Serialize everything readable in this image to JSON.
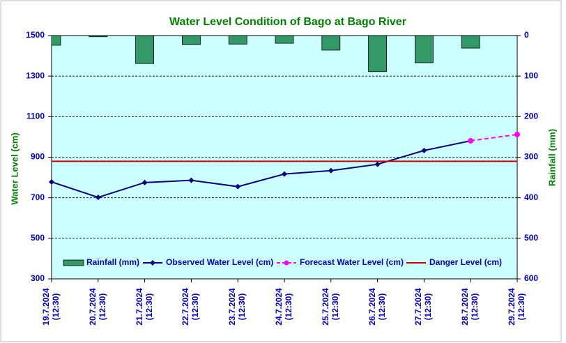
{
  "chart_data": {
    "type": "line",
    "title": "Water Level Condition of Bago at Bago River",
    "ylabel": "Water Level (cm)",
    "y2label": "Rainfall (mm)",
    "categories": [
      "19.7.2024\n(12:30)",
      "20.7.2024\n(12:30)",
      "21.7.2024\n(12:30)",
      "22.7.2024\n(12:30)",
      "23.7.2024\n(12:30)",
      "24.7.2024\n(12:30)",
      "25.7.2024\n(12:30)",
      "26.7.2024\n(12:30)",
      "27.7.2024\n(12:30)",
      "28.7.2024\n(12:30)",
      "29.7.2024\n(12:30)"
    ],
    "series": [
      {
        "name": "Rainfall (mm)",
        "type": "bar",
        "axis": "y2",
        "color": "#339966",
        "values": [
          24,
          3,
          69,
          22,
          21,
          19,
          36,
          89,
          67,
          31,
          null
        ]
      },
      {
        "name": "Observed Water Level (cm)",
        "type": "line",
        "marker": "diamond",
        "color": "#000080",
        "values": [
          778,
          702,
          775,
          786,
          755,
          817,
          834,
          865,
          933,
          981,
          null
        ]
      },
      {
        "name": "Forecast Water Level (cm)",
        "type": "line",
        "marker": "circle",
        "dashed": true,
        "color": "#ff00ff",
        "values": [
          null,
          null,
          null,
          null,
          null,
          null,
          null,
          null,
          null,
          981,
          1012
        ]
      },
      {
        "name": "Danger Level (cm)",
        "type": "line",
        "color": "#cc0000",
        "values": [
          880,
          880,
          880,
          880,
          880,
          880,
          880,
          880,
          880,
          880,
          880
        ]
      }
    ],
    "ylim": [
      300,
      1500
    ],
    "yticks": [
      300,
      500,
      700,
      900,
      1100,
      1300,
      1500
    ],
    "y2lim": [
      0,
      600
    ],
    "y2_inverted": true,
    "y2ticks": [
      0,
      100,
      200,
      300,
      400,
      500,
      600
    ],
    "grid": true,
    "legend": "bottom"
  }
}
